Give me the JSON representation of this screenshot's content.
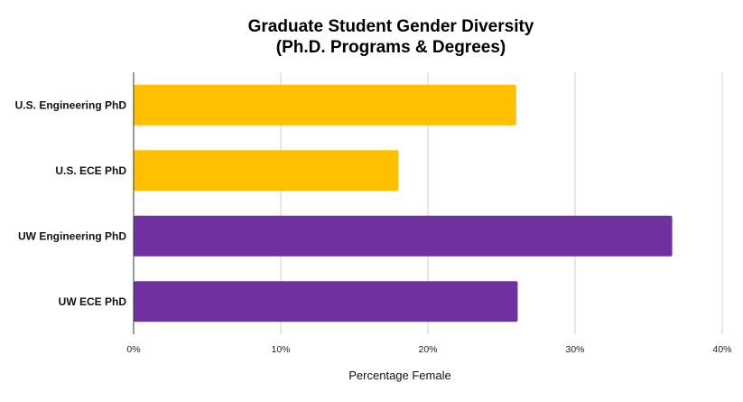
{
  "chart_data": {
    "type": "bar",
    "orientation": "horizontal",
    "title": "Graduate Student Gender Diversity",
    "subtitle": "(Ph.D. Programs & Degrees)",
    "xlabel": "Percentage Female",
    "ylabel": "",
    "xlim": [
      0,
      40
    ],
    "x_ticks": [
      "0%",
      "10%",
      "20%",
      "30%",
      "40%"
    ],
    "x_tick_values": [
      0,
      10,
      20,
      30,
      40
    ],
    "grid": true,
    "categories": [
      "U.S. Engineering PhD",
      "U.S. ECE PhD",
      "UW Engineering PhD",
      "UW ECE PhD"
    ],
    "values": [
      26.0,
      18.0,
      36.6,
      26.1
    ],
    "colors": [
      "#FFC000",
      "#FFC000",
      "#7030A0",
      "#7030A0"
    ]
  }
}
